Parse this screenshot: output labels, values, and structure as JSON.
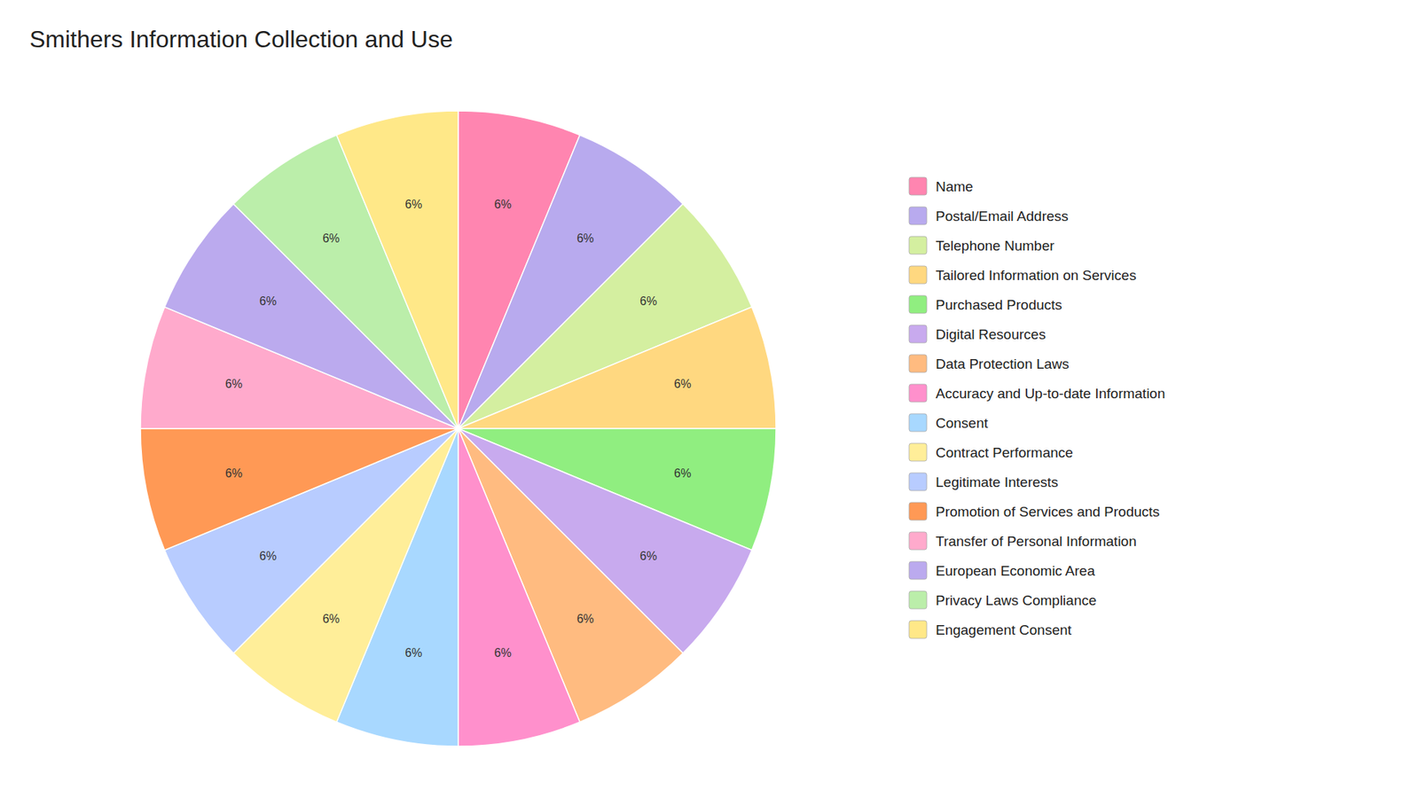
{
  "chart_data": {
    "type": "pie",
    "title": "Smithers Information Collection and Use",
    "categories": [
      "Name",
      "Postal/Email Address",
      "Telephone Number",
      "Tailored Information on Services",
      "Purchased Products",
      "Digital Resources",
      "Data Protection Laws",
      "Accuracy and Up-to-date Information",
      "Consent",
      "Contract Performance",
      "Legitimate Interests",
      "Promotion of Services and Products",
      "Transfer of Personal Information",
      "European Economic Area",
      "Privacy Laws Compliance",
      "Engagement Consent"
    ],
    "values": [
      6.25,
      6.25,
      6.25,
      6.25,
      6.25,
      6.25,
      6.25,
      6.25,
      6.25,
      6.25,
      6.25,
      6.25,
      6.25,
      6.25,
      6.25,
      6.25
    ],
    "value_labels": [
      "6%",
      "6%",
      "6%",
      "6%",
      "6%",
      "6%",
      "6%",
      "6%",
      "6%",
      "6%",
      "6%",
      "6%",
      "6%",
      "6%",
      "6%",
      "6%"
    ],
    "colors": [
      "#FF85B0",
      "#B8AAEE",
      "#D4EFA0",
      "#FFD880",
      "#90EE80",
      "#C8AAEE",
      "#FFBB80",
      "#FF90CC",
      "#A8D8FF",
      "#FFEE99",
      "#B8CCFF",
      "#FF9955",
      "#FFAACC",
      "#BBAAEE",
      "#BBEEAA",
      "#FFE888"
    ],
    "data_labels": true,
    "legend": "right"
  }
}
